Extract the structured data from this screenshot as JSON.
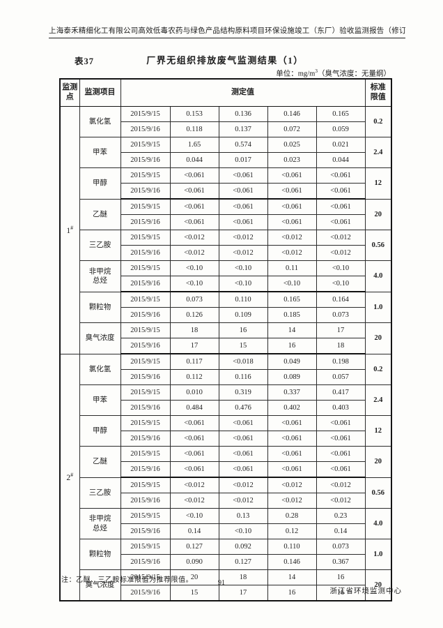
{
  "page": {
    "header": "上海泰禾精细化工有限公司高效低毒农药与绿色产品结构原料项目环保设施竣工（东厂）验收监测报告（修订稿）",
    "table_label": "表37",
    "table_title": "厂界无组织排放废气监测结果（1）",
    "unit_prefix": "单位：mg/m",
    "unit_sup": "3",
    "unit_suffix": "（臭气浓度：无量纲）",
    "note": "注：乙醚、三乙胺标准限值为推荐限值。",
    "page_number": "91",
    "footer": "浙江省环境监测中心"
  },
  "table": {
    "headers": {
      "point": "监测点",
      "item": "监测项目",
      "values": "测定值",
      "limit_line1": "标准",
      "limit_line2": "限值"
    },
    "sections": [
      {
        "point_num": "1",
        "point_mark": "#",
        "items": [
          {
            "name": [
              "氯化氢"
            ],
            "limit": "0.2",
            "thick_after": false,
            "rows": [
              {
                "date": "2015/9/15",
                "values": [
                  "0.153",
                  "0.136",
                  "0.146",
                  "0.165"
                ]
              },
              {
                "date": "2015/9/16",
                "values": [
                  "0.118",
                  "0.137",
                  "0.072",
                  "0.059"
                ]
              }
            ]
          },
          {
            "name": [
              "甲苯"
            ],
            "limit": "2.4",
            "thick_after": false,
            "rows": [
              {
                "date": "2015/9/15",
                "values": [
                  "1.65",
                  "0.574",
                  "0.025",
                  "0.021"
                ]
              },
              {
                "date": "2015/9/16",
                "values": [
                  "0.044",
                  "0.017",
                  "0.023",
                  "0.044"
                ]
              }
            ]
          },
          {
            "name": [
              "甲醇"
            ],
            "limit": "12",
            "thick_after": true,
            "rows": [
              {
                "date": "2015/9/15",
                "values": [
                  "<0.061",
                  "<0.061",
                  "<0.061",
                  "<0.061"
                ]
              },
              {
                "date": "2015/9/16",
                "values": [
                  "<0.061",
                  "<0.061",
                  "<0.061",
                  "<0.061"
                ]
              }
            ]
          },
          {
            "name": [
              "乙醚"
            ],
            "limit": "20",
            "thick_after": false,
            "rows": [
              {
                "date": "2015/9/15",
                "values": [
                  "<0.061",
                  "<0.061",
                  "<0.061",
                  "<0.061"
                ]
              },
              {
                "date": "2015/9/16",
                "values": [
                  "<0.061",
                  "<0.061",
                  "<0.061",
                  "<0.061"
                ]
              }
            ]
          },
          {
            "name": [
              "三乙胺"
            ],
            "limit": "0.56",
            "thick_after": false,
            "rows": [
              {
                "date": "2015/9/15",
                "values": [
                  "<0.012",
                  "<0.012",
                  "<0.012",
                  "<0.012"
                ]
              },
              {
                "date": "2015/9/16",
                "values": [
                  "<0.012",
                  "<0.012",
                  "<0.012",
                  "<0.012"
                ]
              }
            ]
          },
          {
            "name": [
              "非甲烷",
              "总烃"
            ],
            "limit": "4.0",
            "thick_after": true,
            "rows": [
              {
                "date": "2015/9/15",
                "values": [
                  "<0.10",
                  "<0.10",
                  "0.11",
                  "<0.10"
                ]
              },
              {
                "date": "2015/9/16",
                "values": [
                  "<0.10",
                  "<0.10",
                  "<0.10",
                  "<0.10"
                ]
              }
            ]
          },
          {
            "name": [
              "颗粒物"
            ],
            "limit": "1.0",
            "thick_after": false,
            "rows": [
              {
                "date": "2015/9/15",
                "values": [
                  "0.073",
                  "0.110",
                  "0.165",
                  "0.164"
                ]
              },
              {
                "date": "2015/9/16",
                "values": [
                  "0.126",
                  "0.109",
                  "0.185",
                  "0.073"
                ]
              }
            ]
          },
          {
            "name": [
              "臭气浓度"
            ],
            "limit": "20",
            "thick_after": false,
            "rows": [
              {
                "date": "2015/9/15",
                "values": [
                  "18",
                  "16",
                  "14",
                  "17"
                ]
              },
              {
                "date": "2015/9/16",
                "values": [
                  "17",
                  "15",
                  "16",
                  "18"
                ]
              }
            ]
          }
        ]
      },
      {
        "point_num": "2",
        "point_mark": "#",
        "items": [
          {
            "name": [
              "氯化氢"
            ],
            "limit": "0.2",
            "thick_after": false,
            "rows": [
              {
                "date": "2015/9/15",
                "values": [
                  "0.117",
                  "<0.018",
                  "0.049",
                  "0.198"
                ]
              },
              {
                "date": "2015/9/16",
                "values": [
                  "0.112",
                  "0.116",
                  "0.089",
                  "0.057"
                ]
              }
            ]
          },
          {
            "name": [
              "甲苯"
            ],
            "limit": "2.4",
            "thick_after": false,
            "rows": [
              {
                "date": "2015/9/15",
                "values": [
                  "0.010",
                  "0.319",
                  "0.337",
                  "0.417"
                ]
              },
              {
                "date": "2015/9/16",
                "values": [
                  "0.484",
                  "0.476",
                  "0.402",
                  "0.403"
                ]
              }
            ]
          },
          {
            "name": [
              "甲醇"
            ],
            "limit": "12",
            "thick_after": false,
            "rows": [
              {
                "date": "2015/9/15",
                "values": [
                  "<0.061",
                  "<0.061",
                  "<0.061",
                  "<0.061"
                ]
              },
              {
                "date": "2015/9/16",
                "values": [
                  "<0.061",
                  "<0.061",
                  "<0.061",
                  "<0.061"
                ]
              }
            ]
          },
          {
            "name": [
              "乙醚"
            ],
            "limit": "20",
            "thick_after": true,
            "rows": [
              {
                "date": "2015/9/15",
                "values": [
                  "<0.061",
                  "<0.061",
                  "<0.061",
                  "<0.061"
                ]
              },
              {
                "date": "2015/9/16",
                "values": [
                  "<0.061",
                  "<0.061",
                  "<0.061",
                  "<0.061"
                ]
              }
            ]
          },
          {
            "name": [
              "三乙胺"
            ],
            "limit": "0.56",
            "thick_after": false,
            "rows": [
              {
                "date": "2015/9/15",
                "values": [
                  "<0.012",
                  "<0.012",
                  "<0.012",
                  "<0.012"
                ]
              },
              {
                "date": "2015/9/16",
                "values": [
                  "<0.012",
                  "<0.012",
                  "<0.012",
                  "<0.012"
                ]
              }
            ]
          },
          {
            "name": [
              "非甲烷",
              "总烃"
            ],
            "limit": "4.0",
            "thick_after": false,
            "rows": [
              {
                "date": "2015/9/15",
                "values": [
                  "<0.10",
                  "0.13",
                  "0.28",
                  "0.23"
                ]
              },
              {
                "date": "2015/9/16",
                "values": [
                  "0.14",
                  "<0.10",
                  "0.12",
                  "0.14"
                ]
              }
            ]
          },
          {
            "name": [
              "颗粒物"
            ],
            "limit": "1.0",
            "thick_after": false,
            "rows": [
              {
                "date": "2015/9/15",
                "values": [
                  "0.127",
                  "0.092",
                  "0.110",
                  "0.073"
                ]
              },
              {
                "date": "2015/9/16",
                "values": [
                  "0.090",
                  "0.127",
                  "0.146",
                  "0.367"
                ]
              }
            ]
          },
          {
            "name": [
              "臭气浓度"
            ],
            "limit": "20",
            "thick_after": false,
            "rows": [
              {
                "date": "2015/9/15",
                "values": [
                  "20",
                  "18",
                  "14",
                  "16"
                ]
              },
              {
                "date": "2015/9/16",
                "values": [
                  "15",
                  "17",
                  "16",
                  "16"
                ]
              }
            ]
          }
        ]
      }
    ]
  }
}
